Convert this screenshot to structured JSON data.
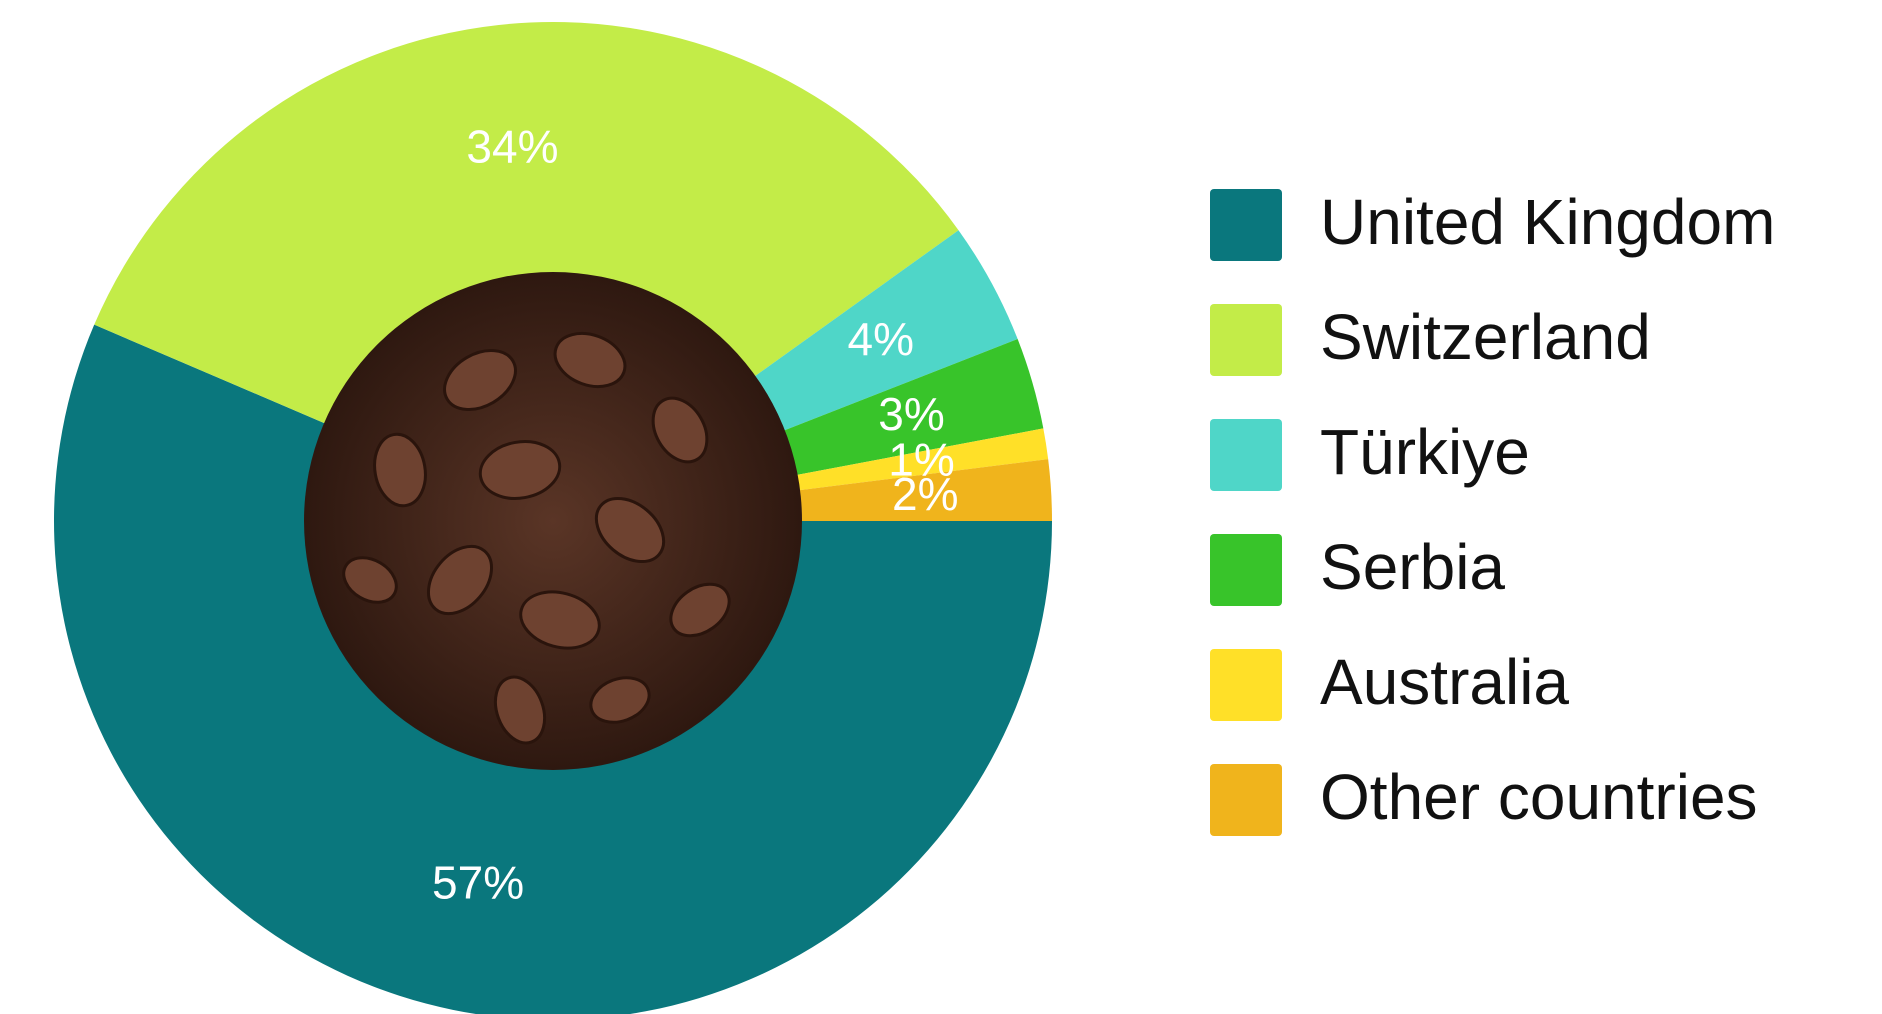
{
  "chart_data": {
    "type": "pie",
    "categories": [
      "United Kingdom",
      "Switzerland",
      "Türkiye",
      "Serbia",
      "Australia",
      "Other countries"
    ],
    "values": [
      57,
      34,
      4,
      3,
      1,
      2
    ],
    "value_labels": [
      "57%",
      "34%",
      "4%",
      "3%",
      "1%",
      "2%"
    ],
    "colors": [
      "#0a777d",
      "#c3ec48",
      "#4fd6c8",
      "#38c42a",
      "#ffe028",
      "#f0b41c"
    ],
    "legend": "right"
  }
}
